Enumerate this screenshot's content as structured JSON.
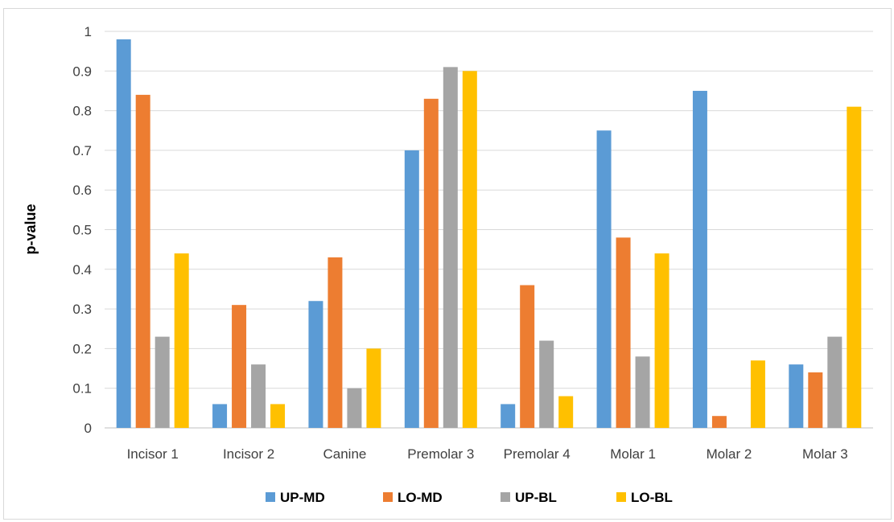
{
  "chart_data": {
    "type": "bar",
    "title": "",
    "xlabel": "",
    "ylabel": "p-value",
    "ylim": [
      0,
      1
    ],
    "yticks": [
      "0",
      "0.1",
      "0.2",
      "0.3",
      "0.4",
      "0.5",
      "0.6",
      "0.7",
      "0.8",
      "0.9",
      "1"
    ],
    "grid": true,
    "legend_position": "bottom",
    "categories": [
      "Incisor 1",
      "Incisor 2",
      "Canine",
      "Premolar 3",
      "Premolar 4",
      "Molar 1",
      "Molar 2",
      "Molar 3"
    ],
    "series": [
      {
        "name": "UP-MD",
        "color": "#5b9bd5",
        "values": [
          0.98,
          0.06,
          0.32,
          0.7,
          0.06,
          0.75,
          0.85,
          0.16
        ]
      },
      {
        "name": "LO-MD",
        "color": "#ed7d31",
        "values": [
          0.84,
          0.31,
          0.43,
          0.83,
          0.36,
          0.48,
          0.03,
          0.14
        ]
      },
      {
        "name": "UP-BL",
        "color": "#a5a5a5",
        "values": [
          0.23,
          0.16,
          0.1,
          0.91,
          0.22,
          0.18,
          0.0,
          0.23
        ]
      },
      {
        "name": "LO-BL",
        "color": "#ffc000",
        "values": [
          0.44,
          0.06,
          0.2,
          0.9,
          0.08,
          0.44,
          0.17,
          0.81
        ]
      }
    ]
  }
}
